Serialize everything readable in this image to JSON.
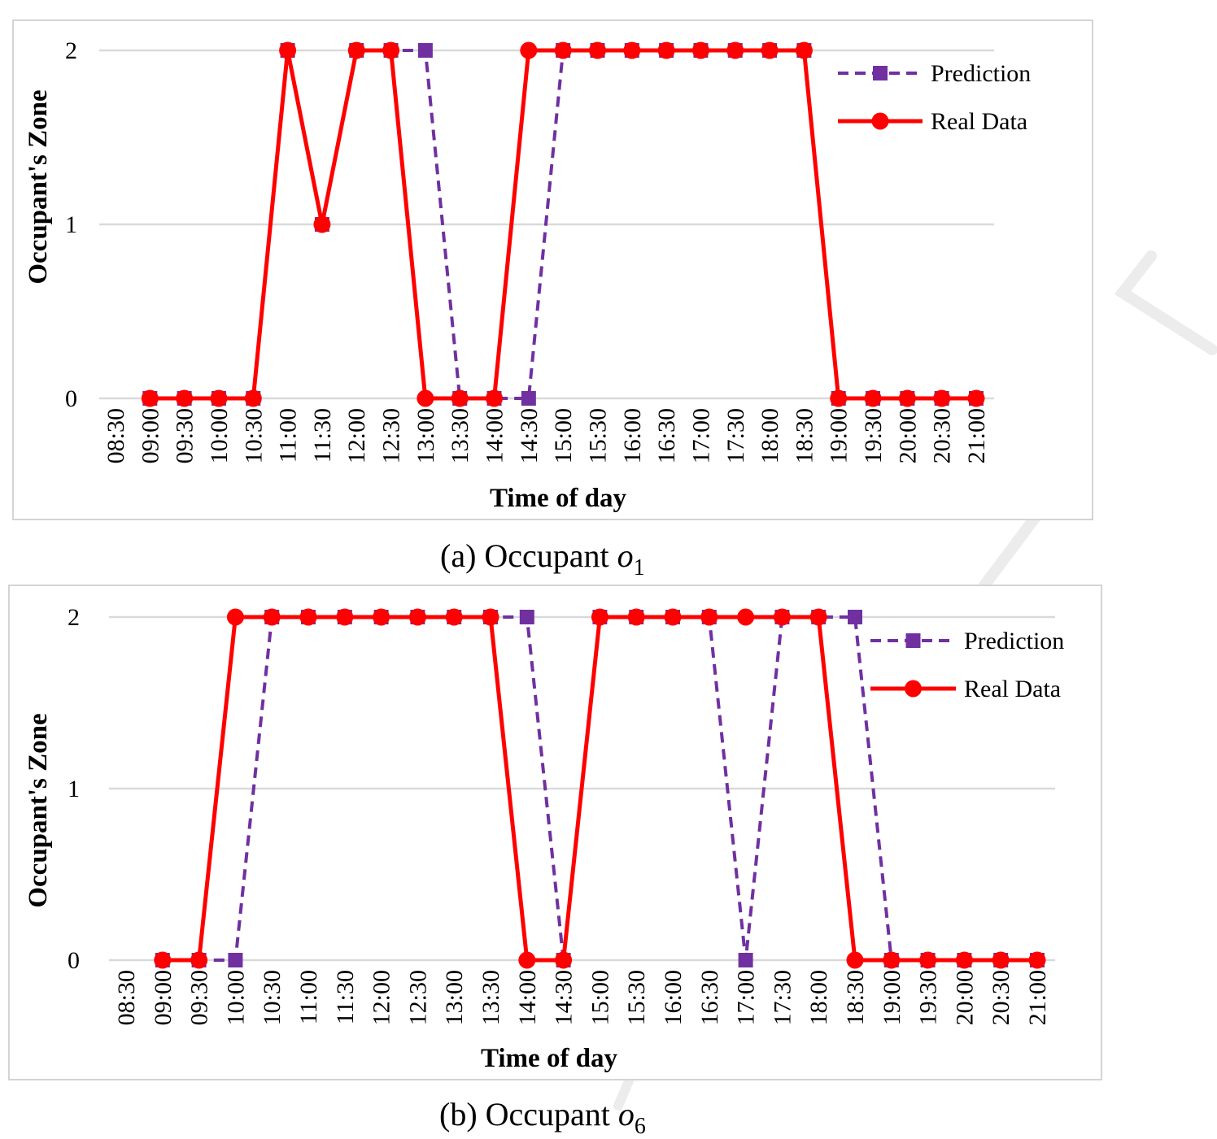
{
  "colors": {
    "prediction": "#7030a0",
    "real": "#ff0000",
    "grid": "#d9d9d9",
    "watermark": "#e6e6e6"
  },
  "chart_data": [
    {
      "type": "line",
      "panel": "a",
      "caption_prefix": "(a) Occupant ",
      "caption_var": "o",
      "caption_sub": "1",
      "xlabel": "Time of day",
      "ylabel": "Occupant's Zone",
      "ylim": [
        0,
        2
      ],
      "yticks": [
        "0",
        "1",
        "2"
      ],
      "legend_position": "top-right",
      "categories": [
        "08:30",
        "09:00",
        "09:30",
        "10:00",
        "10:30",
        "11:00",
        "11:30",
        "12:00",
        "12:30",
        "13:00",
        "13:30",
        "14:00",
        "14:30",
        "15:00",
        "15:30",
        "16:00",
        "16:30",
        "17:00",
        "17:30",
        "18:00",
        "18:30",
        "19:00",
        "19:30",
        "20:00",
        "20:30",
        "21:00"
      ],
      "series": [
        {
          "name": "Prediction",
          "style": "dashed-square",
          "values": [
            null,
            0,
            0,
            0,
            0,
            2,
            1,
            2,
            2,
            2,
            0,
            0,
            0,
            2,
            2,
            2,
            2,
            2,
            2,
            2,
            2,
            0,
            0,
            0,
            0,
            0
          ]
        },
        {
          "name": "Real Data",
          "style": "solid-circle",
          "values": [
            null,
            0,
            0,
            0,
            0,
            2,
            1,
            2,
            2,
            0,
            0,
            0,
            2,
            2,
            2,
            2,
            2,
            2,
            2,
            2,
            2,
            0,
            0,
            0,
            0,
            0
          ]
        }
      ]
    },
    {
      "type": "line",
      "panel": "b",
      "caption_prefix": "(b) Occupant ",
      "caption_var": "o",
      "caption_sub": "6",
      "xlabel": "Time of day",
      "ylabel": "Occupant's Zone",
      "ylim": [
        0,
        2
      ],
      "yticks": [
        "0",
        "1",
        "2"
      ],
      "legend_position": "top-right",
      "categories": [
        "08:30",
        "09:00",
        "09:30",
        "10:00",
        "10:30",
        "11:00",
        "11:30",
        "12:00",
        "12:30",
        "13:00",
        "13:30",
        "14:00",
        "14:30",
        "15:00",
        "15:30",
        "16:00",
        "16:30",
        "17:00",
        "17:30",
        "18:00",
        "18:30",
        "19:00",
        "19:30",
        "20:00",
        "20:30",
        "21:00"
      ],
      "series": [
        {
          "name": "Prediction",
          "style": "dashed-square",
          "values": [
            null,
            0,
            0,
            0,
            2,
            2,
            2,
            2,
            2,
            2,
            2,
            2,
            0,
            2,
            2,
            2,
            2,
            0,
            2,
            2,
            2,
            0,
            0,
            0,
            0,
            0
          ]
        },
        {
          "name": "Real Data",
          "style": "solid-circle",
          "values": [
            null,
            0,
            0,
            2,
            2,
            2,
            2,
            2,
            2,
            2,
            2,
            0,
            0,
            2,
            2,
            2,
            2,
            2,
            2,
            2,
            0,
            0,
            0,
            0,
            0,
            0
          ]
        }
      ]
    }
  ]
}
